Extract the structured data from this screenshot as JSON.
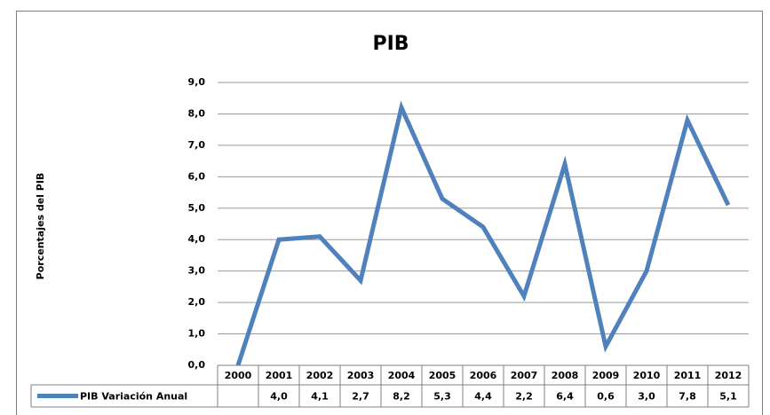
{
  "chart_data": {
    "type": "line",
    "title": "PIB",
    "y_label": "Porcentajes del PIB",
    "categories": [
      "2000",
      "2001",
      "2002",
      "2003",
      "2004",
      "2005",
      "2006",
      "2007",
      "2008",
      "2009",
      "2010",
      "2011",
      "2012"
    ],
    "series": [
      {
        "name": "PIB Variación Anual",
        "color": "#4f81bd",
        "values": [
          0,
          4.0,
          4.1,
          2.7,
          8.2,
          5.3,
          4.4,
          2.2,
          6.4,
          0.6,
          3.0,
          7.8,
          5.1
        ],
        "value_labels": [
          null,
          "4,0",
          "4,1",
          "2,7",
          "8,2",
          "5,3",
          "4,4",
          "2,2",
          "6,4",
          "0,6",
          "3,0",
          "7,8",
          "5,1"
        ]
      }
    ],
    "ylim": [
      0,
      9
    ],
    "yticks": [
      {
        "value": 0,
        "label": "0,0"
      },
      {
        "value": 1,
        "label": "1,0"
      },
      {
        "value": 2,
        "label": "2,0"
      },
      {
        "value": 3,
        "label": "3,0"
      },
      {
        "value": 4,
        "label": "4,0"
      },
      {
        "value": 5,
        "label": "5,0"
      },
      {
        "value": 6,
        "label": "6,0"
      },
      {
        "value": 7,
        "label": "7,0"
      },
      {
        "value": 8,
        "label": "8,0"
      },
      {
        "value": 9,
        "label": "9,0"
      }
    ],
    "grid": true
  }
}
